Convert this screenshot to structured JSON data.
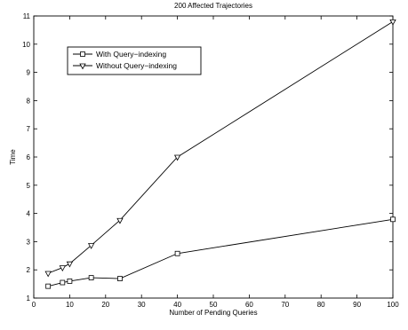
{
  "chart_data": {
    "type": "line",
    "title": "200 Affected Trajectories",
    "xlabel": "Number of Pending Queries",
    "ylabel": "Time",
    "xlim": [
      0,
      100
    ],
    "ylim": [
      1,
      11
    ],
    "xticks": [
      0,
      10,
      20,
      30,
      40,
      50,
      60,
      70,
      80,
      90,
      100
    ],
    "yticks": [
      1,
      2,
      3,
      4,
      5,
      6,
      7,
      8,
      9,
      10,
      11
    ],
    "grid": false,
    "legend_position": "top-left",
    "series": [
      {
        "name": "With Query−indexing",
        "marker": "square",
        "color": "#000000",
        "x": [
          4,
          8,
          10,
          16,
          24,
          40,
          100
        ],
        "y": [
          1.42,
          1.55,
          1.6,
          1.72,
          1.69,
          2.58,
          3.79
        ]
      },
      {
        "name": "Without Query−indexing",
        "marker": "triangle-down",
        "color": "#000000",
        "x": [
          4,
          8,
          10,
          16,
          24,
          40,
          100
        ],
        "y": [
          1.88,
          2.08,
          2.22,
          2.87,
          3.76,
          6.0,
          10.8
        ]
      }
    ]
  }
}
